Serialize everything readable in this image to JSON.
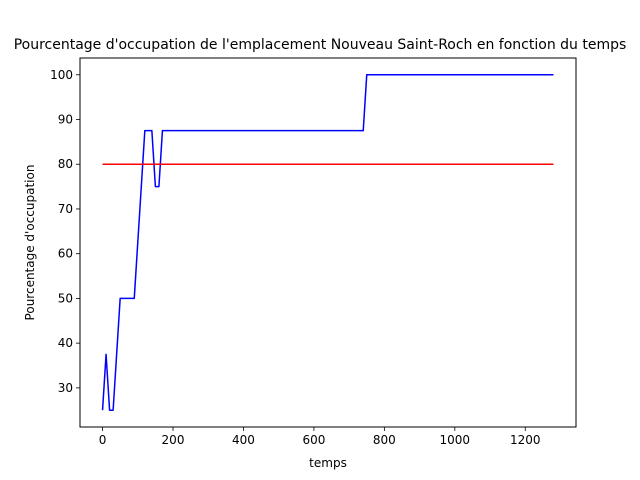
{
  "chart_data": {
    "type": "line",
    "title": "Pourcentage d'occupation de l'emplacement Nouveau Saint-Roch en fonction du temps",
    "xlabel": "temps",
    "ylabel": "Pourcentage d'occupation",
    "xlim": [
      -64,
      1344
    ],
    "ylim": [
      21.25,
      103.75
    ],
    "xticks": [
      0,
      200,
      400,
      600,
      800,
      1000,
      1200
    ],
    "yticks": [
      30,
      40,
      50,
      60,
      70,
      80,
      90,
      100
    ],
    "grid": false,
    "legend": "none",
    "series": [
      {
        "color": "#0000ff",
        "x": [
          0,
          10,
          20,
          30,
          40,
          50,
          60,
          70,
          80,
          90,
          100,
          110,
          120,
          130,
          140,
          150,
          160,
          170,
          180,
          190,
          200,
          740,
          750,
          760,
          1280
        ],
        "y": [
          25,
          37.5,
          25,
          25,
          37.5,
          50,
          50,
          50,
          50,
          50,
          62.5,
          75,
          87.5,
          87.5,
          87.5,
          75,
          75,
          87.5,
          87.5,
          87.5,
          87.5,
          87.5,
          100,
          100,
          100
        ]
      },
      {
        "color": "#ff0000",
        "x": [
          0,
          1280
        ],
        "y": [
          80,
          80
        ]
      }
    ]
  }
}
